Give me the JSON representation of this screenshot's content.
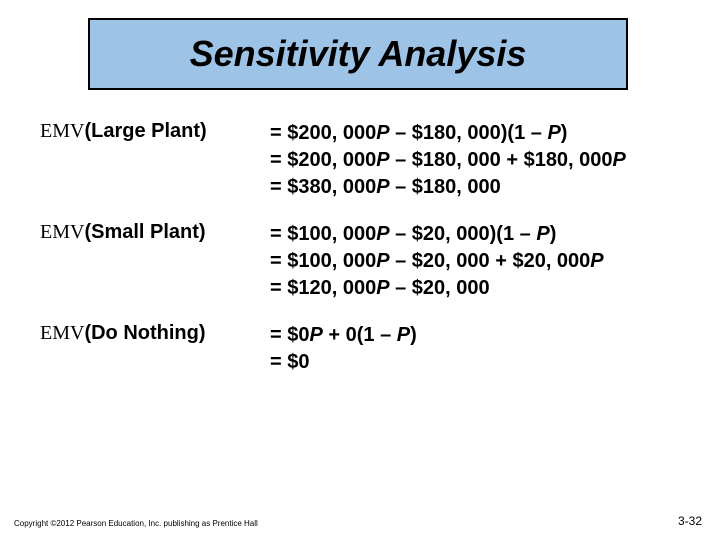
{
  "title": "Sensitivity Analysis",
  "groups": [
    {
      "label_prefix": "EMV",
      "label_bold": "(Large Plant)",
      "lines": [
        "= $200, 000<i>P</i> – $180, 000)(1 – <i>P</i>)",
        "= $200, 000<i>P</i> – $180, 000 + $180, 000<i>P</i>",
        "= $380, 000<i>P</i> – $180, 000"
      ]
    },
    {
      "label_prefix": "EMV",
      "label_bold": "(Small Plant)",
      "lines": [
        "= $100, 000<i>P</i> – $20, 000)(1 – <i>P</i>)",
        "= $100, 000<i>P</i> – $20, 000 + $20, 000<i>P</i>",
        "= $120, 000<i>P</i> – $20, 000"
      ]
    },
    {
      "label_prefix": "EMV",
      "label_bold": "(Do Nothing)",
      "lines": [
        "= $0<i>P</i> + 0(1 – <i>P</i>)",
        "= $0"
      ]
    }
  ],
  "footer_left": "Copyright ©2012 Pearson Education, Inc. publishing as Prentice Hall",
  "footer_right": "3-32",
  "colors": {
    "title_bg": "#9dc3e6",
    "title_border": "#000000",
    "page_bg": "#ffffff",
    "text": "#000000"
  }
}
